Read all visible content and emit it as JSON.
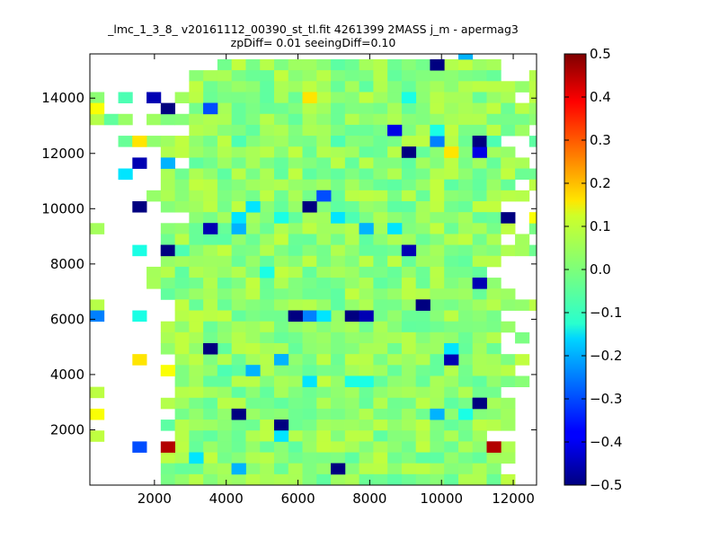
{
  "chart_data": {
    "type": "heatmap",
    "title": "_lmc_1_3_8_ v20161112_00390_st_tl.fit 4261399 2MASS j_m - apermag3",
    "subtitle": "zpDiff= 0.01 seeingDiff=0.10",
    "xlabel": "",
    "ylabel": "",
    "xlim": [
      200,
      12650
    ],
    "ylim": [
      0,
      15600
    ],
    "xticks": [
      2000,
      4000,
      6000,
      8000,
      10000,
      12000
    ],
    "yticks": [
      2000,
      4000,
      6000,
      8000,
      10000,
      12000,
      14000
    ],
    "grid": false,
    "colormap": "jet",
    "colorbar": {
      "range": [
        -0.5,
        0.5
      ],
      "ticks": [
        0.5,
        0.4,
        0.3,
        0.2,
        0.1,
        0.0,
        -0.1,
        -0.2,
        -0.3,
        -0.4,
        -0.5
      ],
      "tick_labels": [
        "0.5",
        "0.4",
        "0.3",
        "0.2",
        "0.1",
        "0.0",
        "−0.1",
        "−0.2",
        "−0.3",
        "−0.4",
        "−0.5"
      ]
    },
    "x0": 200,
    "y0": 0,
    "cell_size": 395,
    "columns": 32,
    "rows": 39,
    "data_rows_top_to_bottom": [
      "_________++++++++++++++++++-+___",
      "_______+++++++++++++++++H++++__+",
      "_______+++++++++++++++++++++++++",
      "+_____+z++++++++++++++++++++++_+",
      "_______+++++++++++++++++++++++++",
      "+++_++++Z++++++++++++++++++++++++",
      "_______++++++++++++++++++++++++_",
      "__+++++++++++++z+++++++++++++__+",
      "_____++++++++++++++++++++H++++__+",
      "_______+++++++++++++++++++++++Z_",
      "_____+++++++++++++++++++++++++++",
      "_____+++++++++++++++++++++++++_+",
      "____+Z+++++++++++++++++++++++++_",
      "_____++++++++++++++++++++++++___",
      "_______++++++++++++++++++++++___",
      "+____+++++++++++++++++++Z+++++_++",
      "_____++++++++++++++++++++++++_+",
      "_____+++++++++++++++++++++++++Z+",
      "_____++++++++++++++++++++++++__",
      "____+++Z++++++++++++++++++++____",
      "____+++++++++++++++++++++++++___",
      "_____+++++++++++++++++++++++++__",
      "+_____++++++++++++++++++++++++++",
      "______+++++++++++++++++++++++___",
      "_____+++++++++++++++++++++++++__",
      "_____++++++++++++++++++++++++_+",
      "_____++++++++++++++++++++++++__",
      "______+++++++++++++++++++++++++",
      "_____+++++++++++++++++++++++++__",
      "______+++++++++++++++++++++++++",
      "+_____+++++++++++++++++++++++___",
      "_____+++++++++++++++++++++++++__",
      "______++++++++++++++++++++++++__",
      "_____+++++++++++++++++++++++++__",
      "+_____++++++++++++++++++++++___",
      "______++++++++++++++++++++++++__",
      "_____+++++++++++++++++++++++++__",
      "_____++++++++++++++++++++++++___",
      "_____+++++++++++++++++++++++++__"
    ],
    "cell_values": [
      {
        "x": 2200,
        "y": 1000,
        "value": 0.45
      },
      {
        "x": 11300,
        "y": 1000,
        "value": 0.45
      },
      {
        "x": 1400,
        "y": 1000,
        "value": -0.3
      },
      {
        "x": 2900,
        "y": 600,
        "value": -0.15
      },
      {
        "x": 4300,
        "y": 300,
        "value": -0.2
      },
      {
        "x": 7000,
        "y": 300,
        "value": -0.5
      },
      {
        "x": 5200,
        "y": 1800,
        "value": -0.5
      },
      {
        "x": 5500,
        "y": 1400,
        "value": -0.15
      },
      {
        "x": 4300,
        "y": 2200,
        "value": -0.5
      },
      {
        "x": 9800,
        "y": 2200,
        "value": -0.2
      },
      {
        "x": 10500,
        "y": 2200,
        "value": -0.1
      },
      {
        "x": 10900,
        "y": 2600,
        "value": -0.5
      },
      {
        "x": 6100,
        "y": 3700,
        "value": -0.15
      },
      {
        "x": 7500,
        "y": 3700,
        "value": -0.1
      },
      {
        "x": 7900,
        "y": 3700,
        "value": -0.1
      },
      {
        "x": 3700,
        "y": 4100,
        "value": -0.05
      },
      {
        "x": 4600,
        "y": 4100,
        "value": -0.2
      },
      {
        "x": 5300,
        "y": 4500,
        "value": -0.2
      },
      {
        "x": 2200,
        "y": 4100,
        "value": 0.12
      },
      {
        "x": 1400,
        "y": 4500,
        "value": 0.15
      },
      {
        "x": 10200,
        "y": 4500,
        "value": -0.45
      },
      {
        "x": 10200,
        "y": 4900,
        "value": -0.15
      },
      {
        "x": 3400,
        "y": 4900,
        "value": -0.5
      },
      {
        "x": 200,
        "y": 6100,
        "value": -0.25
      },
      {
        "x": 1400,
        "y": 6100,
        "value": -0.1
      },
      {
        "x": 6000,
        "y": 6100,
        "value": -0.25
      },
      {
        "x": 6400,
        "y": 6100,
        "value": -0.15
      },
      {
        "x": 5900,
        "y": 5800,
        "value": -0.5
      },
      {
        "x": 7500,
        "y": 5800,
        "value": -0.5
      },
      {
        "x": 7900,
        "y": 6100,
        "value": -0.45
      },
      {
        "x": 9400,
        "y": 6500,
        "value": -0.5
      },
      {
        "x": 10900,
        "y": 7300,
        "value": -0.45
      },
      {
        "x": 4800,
        "y": 7700,
        "value": -0.1
      },
      {
        "x": 1400,
        "y": 8100,
        "value": -0.1
      },
      {
        "x": 2200,
        "y": 8100,
        "value": -0.5
      },
      {
        "x": 2600,
        "y": 8100,
        "value": -0.05
      },
      {
        "x": 8900,
        "y": 8100,
        "value": -0.45
      },
      {
        "x": 3400,
        "y": 9200,
        "value": -0.45
      },
      {
        "x": 4200,
        "y": 9200,
        "value": -0.2
      },
      {
        "x": 7900,
        "y": 9200,
        "value": -0.2
      },
      {
        "x": 8300,
        "y": 9200,
        "value": -0.15
      },
      {
        "x": 4200,
        "y": 9600,
        "value": -0.15
      },
      {
        "x": 5400,
        "y": 9600,
        "value": -0.1
      },
      {
        "x": 6800,
        "y": 9600,
        "value": -0.15
      },
      {
        "x": 7300,
        "y": 9600,
        "value": -0.05
      },
      {
        "x": 4600,
        "y": 10000,
        "value": -0.15
      },
      {
        "x": 1200,
        "y": 10000,
        "value": -0.5
      },
      {
        "x": 6200,
        "y": 10000,
        "value": -0.5
      },
      {
        "x": 6400,
        "y": 10400,
        "value": -0.3
      },
      {
        "x": 11600,
        "y": 9600,
        "value": -0.5
      },
      {
        "x": 12400,
        "y": 9600,
        "value": 0.12
      },
      {
        "x": 800,
        "y": 11100,
        "value": -0.15
      },
      {
        "x": 1400,
        "y": 11500,
        "value": -0.45
      },
      {
        "x": 2200,
        "y": 11500,
        "value": -0.2
      },
      {
        "x": 8900,
        "y": 11900,
        "value": -0.5
      },
      {
        "x": 10200,
        "y": 11900,
        "value": 0.15
      },
      {
        "x": 10900,
        "y": 11900,
        "value": -0.4
      },
      {
        "x": 10900,
        "y": 12300,
        "value": -0.5
      },
      {
        "x": 11300,
        "y": 12300,
        "value": -0.05
      },
      {
        "x": 9800,
        "y": 12300,
        "value": -0.25
      },
      {
        "x": 6800,
        "y": 12300,
        "value": -0.05
      },
      {
        "x": 1400,
        "y": 12300,
        "value": 0.15
      },
      {
        "x": 4000,
        "y": 12300,
        "value": -0.05
      },
      {
        "x": 8500,
        "y": 12700,
        "value": -0.4
      },
      {
        "x": 9800,
        "y": 12700,
        "value": -0.1
      },
      {
        "x": 2200,
        "y": 13400,
        "value": -0.5
      },
      {
        "x": 3500,
        "y": 13400,
        "value": -0.3
      },
      {
        "x": 1800,
        "y": 13800,
        "value": -0.45
      },
      {
        "x": 1000,
        "y": 13800,
        "value": -0.05
      },
      {
        "x": 6200,
        "y": 13800,
        "value": 0.15
      },
      {
        "x": 8700,
        "y": 13800,
        "value": -0.1
      },
      {
        "x": 9800,
        "y": 14900,
        "value": -0.5
      },
      {
        "x": 10600,
        "y": 15300,
        "value": -0.2
      },
      {
        "x": 200,
        "y": 13400,
        "value": 0.12
      },
      {
        "x": 200,
        "y": 2200,
        "value": 0.12
      }
    ]
  }
}
